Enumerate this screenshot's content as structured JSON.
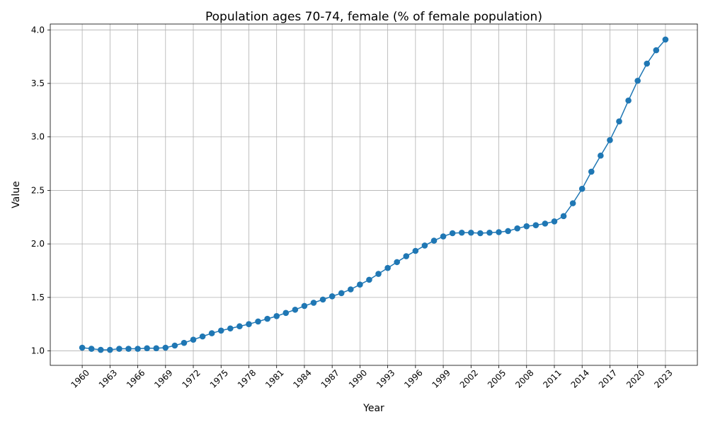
{
  "chart_data": {
    "type": "line",
    "title": "Population ages 70-74, female (% of female population)",
    "xlabel": "Year",
    "ylabel": "Value",
    "xlim": [
      1956.55,
      2026.45
    ],
    "ylim": [
      0.865,
      4.055
    ],
    "x_ticks": [
      "1960",
      "1963",
      "1966",
      "1969",
      "1972",
      "1975",
      "1978",
      "1981",
      "1984",
      "1987",
      "1990",
      "1993",
      "1996",
      "1999",
      "2002",
      "2005",
      "2008",
      "2011",
      "2014",
      "2017",
      "2020",
      "2023"
    ],
    "y_ticks": [
      "1.0",
      "1.5",
      "2.0",
      "2.5",
      "3.0",
      "3.5",
      "4.0"
    ],
    "grid": true,
    "color": "#1f77b4",
    "marker": "circle",
    "x": [
      1960,
      1961,
      1962,
      1963,
      1964,
      1965,
      1966,
      1967,
      1968,
      1969,
      1970,
      1971,
      1972,
      1973,
      1974,
      1975,
      1976,
      1977,
      1978,
      1979,
      1980,
      1981,
      1982,
      1983,
      1984,
      1985,
      1986,
      1987,
      1988,
      1989,
      1990,
      1991,
      1992,
      1993,
      1994,
      1995,
      1996,
      1997,
      1998,
      1999,
      2000,
      2001,
      2002,
      2003,
      2004,
      2005,
      2006,
      2007,
      2008,
      2009,
      2010,
      2011,
      2012,
      2013,
      2014,
      2015,
      2016,
      2017,
      2018,
      2019,
      2020,
      2021,
      2022,
      2023
    ],
    "values": [
      1.03,
      1.02,
      1.01,
      1.01,
      1.02,
      1.02,
      1.02,
      1.025,
      1.025,
      1.03,
      1.05,
      1.075,
      1.105,
      1.135,
      1.165,
      1.19,
      1.21,
      1.23,
      1.25,
      1.275,
      1.3,
      1.325,
      1.355,
      1.385,
      1.42,
      1.45,
      1.48,
      1.51,
      1.54,
      1.575,
      1.62,
      1.665,
      1.72,
      1.775,
      1.83,
      1.885,
      1.935,
      1.985,
      2.03,
      2.07,
      2.1,
      2.105,
      2.105,
      2.1,
      2.105,
      2.11,
      2.12,
      2.145,
      2.165,
      2.175,
      2.19,
      2.21,
      2.26,
      2.38,
      2.515,
      2.675,
      2.825,
      2.97,
      3.145,
      3.34,
      3.525,
      3.685,
      3.81,
      3.91
    ]
  }
}
